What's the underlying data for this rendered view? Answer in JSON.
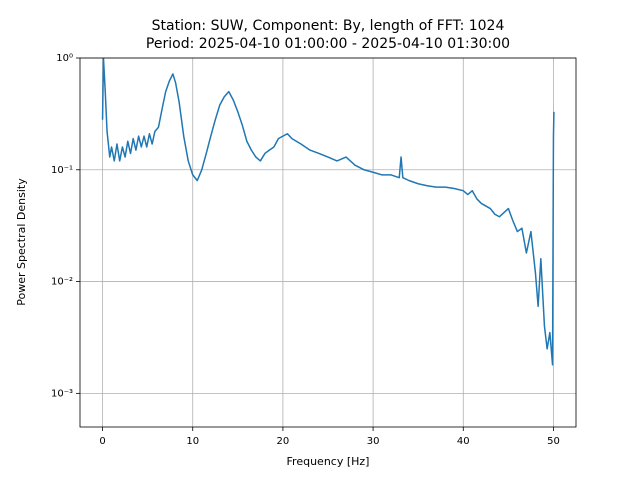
{
  "chart_data": {
    "type": "line",
    "title": "Station: SUW, Component: By, length of FFT: 1024",
    "subtitle": "Period: 2025-04-10 01:00:00 - 2025-04-10 01:30:00",
    "x_label": "Frequency [Hz]",
    "y_label": "Power Spectral Density",
    "color": "#1f77b4",
    "grid": true,
    "y_scale": "log",
    "xlim": [
      -2.5,
      52.5
    ],
    "xticks": [
      0,
      10,
      20,
      30,
      40,
      50
    ],
    "ylim": [
      0.0005,
      1
    ],
    "yticks": [
      {
        "value": 0.001,
        "label": "10⁻³"
      },
      {
        "value": 0.01,
        "label": "10⁻²"
      },
      {
        "value": 0.1,
        "label": "10⁻¹"
      },
      {
        "value": 1,
        "label": "10⁰"
      }
    ],
    "x": [
      0,
      0.1,
      0.3,
      0.5,
      0.8,
      1,
      1.3,
      1.6,
      1.9,
      2.2,
      2.5,
      2.8,
      3.1,
      3.4,
      3.7,
      4,
      4.3,
      4.6,
      4.9,
      5.2,
      5.5,
      5.8,
      6.2,
      6.6,
      7,
      7.4,
      7.8,
      8.1,
      8.5,
      9,
      9.5,
      10,
      10.5,
      11,
      11.5,
      12,
      12.5,
      13,
      13.5,
      14,
      14.5,
      15,
      15.5,
      16,
      16.5,
      17,
      17.5,
      18,
      18.5,
      19,
      19.5,
      20,
      20.5,
      21,
      22,
      23,
      24,
      25,
      26,
      27,
      28,
      29,
      30,
      31,
      32,
      32.9,
      33.1,
      33.3,
      34,
      35,
      36,
      37,
      38,
      39,
      40,
      40.5,
      41,
      41.5,
      42,
      43,
      43.5,
      44,
      45,
      45.5,
      46,
      46.5,
      47,
      47.5,
      48,
      48.3,
      48.6,
      49,
      49.3,
      49.6,
      49.9,
      50,
      50.05
    ],
    "values": [
      0.28,
      1.0,
      0.5,
      0.22,
      0.13,
      0.16,
      0.12,
      0.17,
      0.12,
      0.16,
      0.13,
      0.18,
      0.14,
      0.19,
      0.15,
      0.2,
      0.16,
      0.2,
      0.16,
      0.21,
      0.17,
      0.22,
      0.24,
      0.35,
      0.5,
      0.62,
      0.72,
      0.6,
      0.4,
      0.2,
      0.12,
      0.09,
      0.08,
      0.1,
      0.14,
      0.2,
      0.28,
      0.38,
      0.45,
      0.5,
      0.42,
      0.33,
      0.25,
      0.18,
      0.15,
      0.13,
      0.12,
      0.14,
      0.15,
      0.16,
      0.19,
      0.2,
      0.21,
      0.19,
      0.17,
      0.15,
      0.14,
      0.13,
      0.12,
      0.13,
      0.11,
      0.1,
      0.095,
      0.09,
      0.09,
      0.085,
      0.13,
      0.085,
      0.08,
      0.075,
      0.072,
      0.07,
      0.07,
      0.068,
      0.065,
      0.06,
      0.065,
      0.055,
      0.05,
      0.045,
      0.04,
      0.038,
      0.045,
      0.035,
      0.028,
      0.03,
      0.018,
      0.028,
      0.012,
      0.006,
      0.016,
      0.004,
      0.0025,
      0.0035,
      0.0018,
      0.2,
      0.33
    ]
  }
}
